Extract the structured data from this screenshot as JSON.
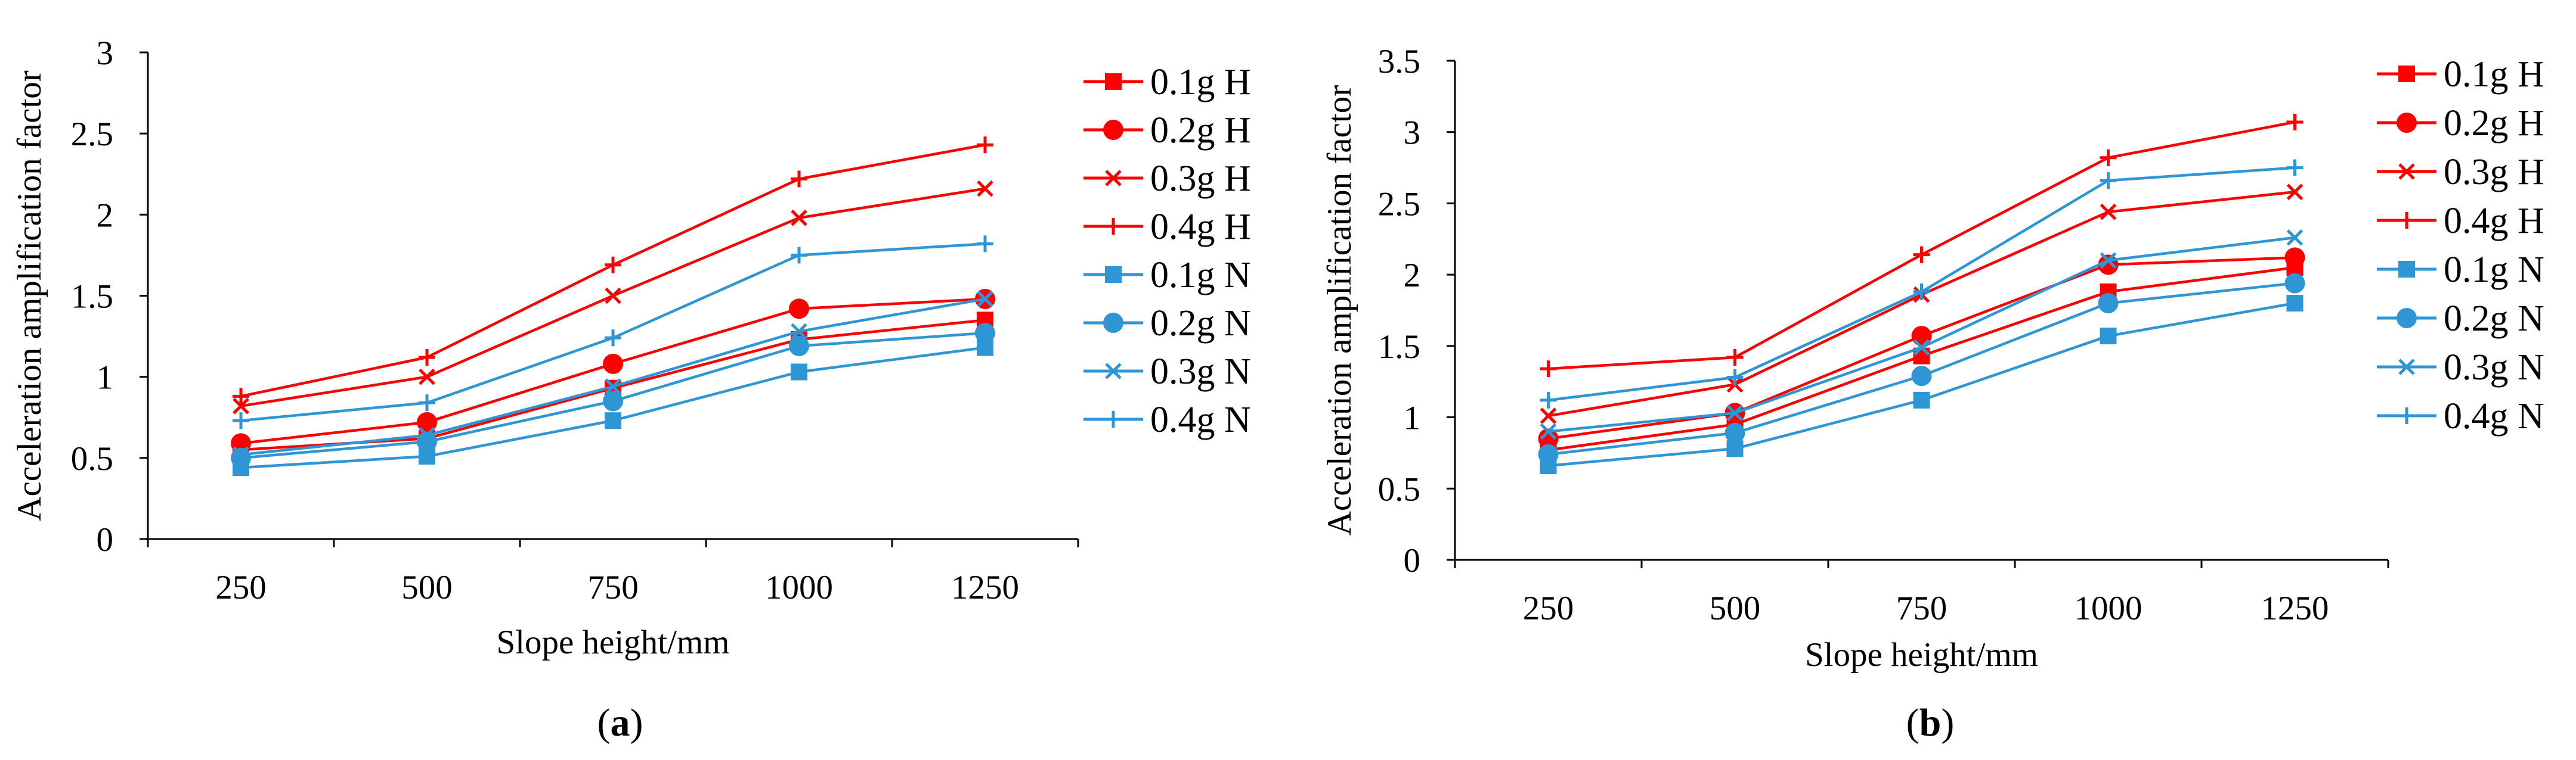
{
  "colors": {
    "H": "#ff0000",
    "N": "#2f96d6",
    "axis": "#000000"
  },
  "series_legend": [
    {
      "label": "0.1g H",
      "marker": "square",
      "group": "H"
    },
    {
      "label": "0.2g H",
      "marker": "circle",
      "group": "H"
    },
    {
      "label": "0.3g H",
      "marker": "x",
      "group": "H"
    },
    {
      "label": "0.4g H",
      "marker": "plus",
      "group": "H"
    },
    {
      "label": "0.1g N",
      "marker": "square",
      "group": "N"
    },
    {
      "label": "0.2g N",
      "marker": "circle",
      "group": "N"
    },
    {
      "label": "0.3g N",
      "marker": "x",
      "group": "N"
    },
    {
      "label": "0.4g N",
      "marker": "plus",
      "group": "N"
    }
  ],
  "chart_data": [
    {
      "panel": "a",
      "panel_label": {
        "open": "(",
        "letter": "a",
        "close": ")"
      },
      "type": "line",
      "xlabel": "Slope height/mm",
      "ylabel": "Acceleration amplification factor",
      "categories": [
        "250",
        "500",
        "750",
        "1000",
        "1250"
      ],
      "ylim": [
        0,
        3
      ],
      "yticks": [
        "0",
        "0.5",
        "1",
        "1.5",
        "2",
        "2.5",
        "3"
      ],
      "legend_position": "right",
      "series": [
        {
          "name": "0.1g H",
          "values": [
            0.55,
            0.62,
            0.93,
            1.23,
            1.35
          ]
        },
        {
          "name": "0.2g H",
          "values": [
            0.59,
            0.72,
            1.08,
            1.42,
            1.48
          ]
        },
        {
          "name": "0.3g H",
          "values": [
            0.82,
            1.0,
            1.5,
            1.98,
            2.16
          ]
        },
        {
          "name": "0.4g H",
          "values": [
            0.88,
            1.12,
            1.69,
            2.22,
            2.43
          ]
        },
        {
          "name": "0.1g N",
          "values": [
            0.44,
            0.51,
            0.73,
            1.03,
            1.18
          ]
        },
        {
          "name": "0.2g N",
          "values": [
            0.5,
            0.6,
            0.85,
            1.19,
            1.27
          ]
        },
        {
          "name": "0.3g N",
          "values": [
            0.52,
            0.64,
            0.94,
            1.28,
            1.48
          ]
        },
        {
          "name": "0.4g N",
          "values": [
            0.73,
            0.84,
            1.24,
            1.75,
            1.82
          ]
        }
      ]
    },
    {
      "panel": "b",
      "panel_label": {
        "open": "(",
        "letter": "b",
        "close": ")"
      },
      "type": "line",
      "xlabel": "Slope height/mm",
      "ylabel": "Acceleration amplification factor",
      "categories": [
        "250",
        "500",
        "750",
        "1000",
        "1250"
      ],
      "ylim": [
        0,
        3.5
      ],
      "yticks": [
        "0",
        "0.5",
        "1",
        "1.5",
        "2",
        "2.5",
        "3",
        "3.5"
      ],
      "legend_position": "right",
      "series": [
        {
          "name": "0.1g H",
          "values": [
            0.77,
            0.95,
            1.43,
            1.88,
            2.05
          ]
        },
        {
          "name": "0.2g H",
          "values": [
            0.85,
            1.03,
            1.57,
            2.07,
            2.12
          ]
        },
        {
          "name": "0.3g H",
          "values": [
            1.01,
            1.23,
            1.86,
            2.44,
            2.58
          ]
        },
        {
          "name": "0.4g H",
          "values": [
            1.34,
            1.42,
            2.14,
            2.82,
            3.07
          ]
        },
        {
          "name": "0.1g N",
          "values": [
            0.66,
            0.78,
            1.12,
            1.57,
            1.8
          ]
        },
        {
          "name": "0.2g N",
          "values": [
            0.74,
            0.89,
            1.29,
            1.8,
            1.94
          ]
        },
        {
          "name": "0.3g N",
          "values": [
            0.9,
            1.03,
            1.49,
            2.1,
            2.26
          ]
        },
        {
          "name": "0.4g N",
          "values": [
            1.12,
            1.28,
            1.88,
            2.66,
            2.75
          ]
        }
      ]
    }
  ]
}
